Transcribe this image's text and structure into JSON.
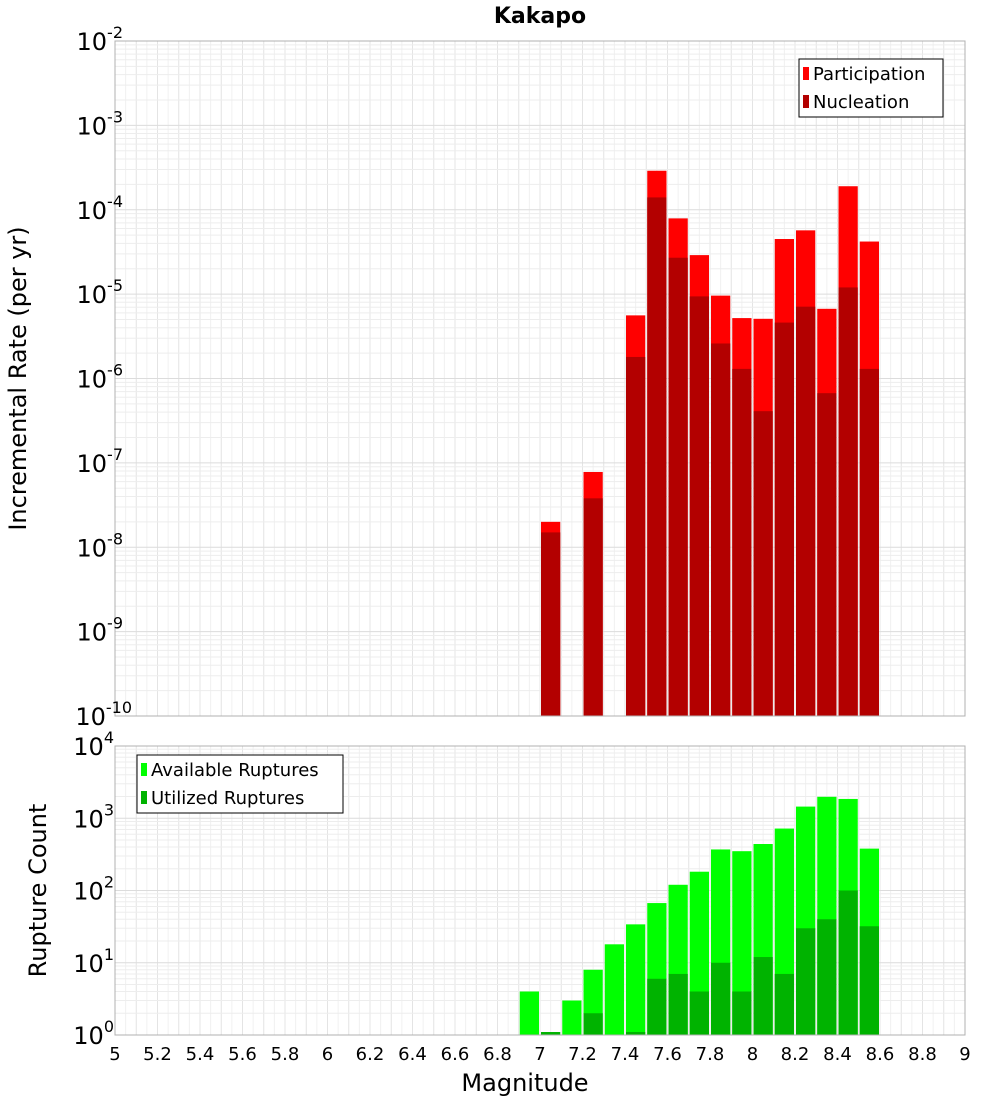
{
  "chart_data": [
    {
      "type": "bar",
      "title": "Kakapo",
      "xlabel": "",
      "ylabel": "Incremental Rate (per yr)",
      "yscale": "log",
      "ylim_exp": [
        -10,
        -2
      ],
      "xlim": [
        5,
        9
      ],
      "grid": true,
      "legend_placement": "top-right",
      "series": [
        {
          "name": "Participation",
          "color": "#ff0000",
          "x": [
            7.05,
            7.25,
            7.45,
            7.55,
            7.65,
            7.75,
            7.85,
            7.95,
            8.05,
            8.15,
            8.25,
            8.35,
            8.45,
            8.55
          ],
          "values": [
            2e-08,
            7.8e-08,
            5.6e-06,
            0.00029,
            7.9e-05,
            2.9e-05,
            9.6e-06,
            5.2e-06,
            5.1e-06,
            4.5e-05,
            5.7e-05,
            6.7e-06,
            0.00019,
            4.2e-05
          ]
        },
        {
          "name": "Nucleation",
          "color": "#b30000",
          "x": [
            7.05,
            7.25,
            7.45,
            7.55,
            7.65,
            7.75,
            7.85,
            7.95,
            8.05,
            8.15,
            8.25,
            8.35,
            8.45,
            8.55
          ],
          "values": [
            1.5e-08,
            3.8e-08,
            1.8e-06,
            0.00014,
            2.7e-05,
            9.4e-06,
            2.6e-06,
            1.3e-06,
            4.1e-07,
            4.6e-06,
            7.1e-06,
            6.7e-07,
            1.2e-05,
            1.3e-06
          ]
        }
      ]
    },
    {
      "type": "bar",
      "title": "",
      "xlabel": "Magnitude",
      "ylabel": "Rupture Count",
      "yscale": "log",
      "ylim_exp": [
        0,
        4
      ],
      "xlim": [
        5,
        9
      ],
      "grid": true,
      "legend_placement": "top-left",
      "x_ticks": [
        "5",
        "5.2",
        "5.4",
        "5.6",
        "5.8",
        "6",
        "6.2",
        "6.4",
        "6.6",
        "6.8",
        "7",
        "7.2",
        "7.4",
        "7.6",
        "7.8",
        "8",
        "8.2",
        "8.4",
        "8.6",
        "8.8",
        "9"
      ],
      "series": [
        {
          "name": "Available Ruptures",
          "color": "#00ff00",
          "x": [
            6.95,
            7.05,
            7.15,
            7.25,
            7.35,
            7.45,
            7.55,
            7.65,
            7.75,
            7.85,
            7.95,
            8.05,
            8.15,
            8.25,
            8.35,
            8.45,
            8.55
          ],
          "values": [
            4,
            1,
            3,
            8,
            18,
            34,
            67,
            120,
            182,
            370,
            350,
            440,
            720,
            1450,
            1980,
            1850,
            380
          ]
        },
        {
          "name": "Utilized Ruptures",
          "color": "#00b300",
          "x": [
            7.05,
            7.25,
            7.45,
            7.55,
            7.65,
            7.75,
            7.85,
            7.95,
            8.05,
            8.15,
            8.25,
            8.35,
            8.45,
            8.55
          ],
          "values": [
            1.1,
            2,
            1.1,
            6,
            7,
            4,
            10,
            4,
            12,
            7,
            30,
            40,
            100,
            32
          ]
        }
      ]
    }
  ]
}
